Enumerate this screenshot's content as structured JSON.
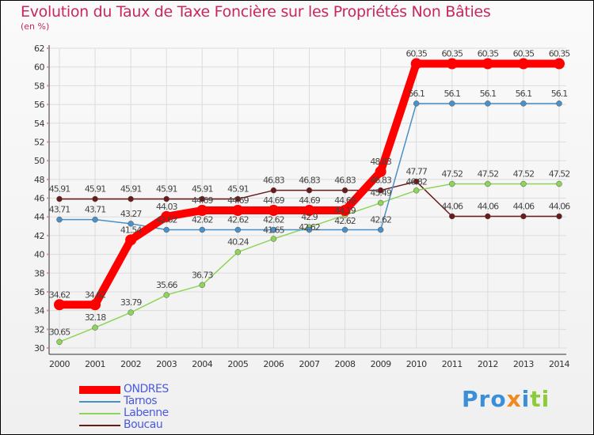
{
  "chart_data": {
    "type": "line",
    "title": "Evolution du Taux de Taxe Foncière sur les Propriétés Non Bâties",
    "subtitle": "(en %)",
    "xlabel": "",
    "ylabel": "",
    "x": [
      "2000",
      "2001",
      "2002",
      "2003",
      "2004",
      "2005",
      "2006",
      "2007",
      "2008",
      "2009",
      "2010",
      "2011",
      "2012",
      "2013",
      "2014"
    ],
    "ylim": [
      30,
      62
    ],
    "yticks": [
      30,
      32,
      34,
      36,
      38,
      40,
      42,
      44,
      46,
      48,
      50,
      52,
      54,
      56,
      58,
      60,
      62
    ],
    "grid": true,
    "legend": "bottom-left",
    "series": [
      {
        "name": "ONDRES",
        "color": "#ff0000",
        "values": [
          34.62,
          34.62,
          41.54,
          44.03,
          44.69,
          44.69,
          44.69,
          44.69,
          44.69,
          48.83,
          60.35,
          60.35,
          60.35,
          60.35,
          60.35
        ]
      },
      {
        "name": "Tarnos",
        "color": "#4a90c8",
        "values": [
          43.71,
          43.71,
          43.27,
          42.62,
          42.62,
          42.62,
          42.62,
          42.62,
          42.62,
          42.62,
          56.1,
          56.1,
          56.1,
          56.1,
          56.1
        ]
      },
      {
        "name": "Labenne",
        "color": "#8fd45a",
        "values": [
          30.65,
          32.18,
          33.79,
          35.66,
          36.73,
          40.24,
          41.65,
          42.9,
          44.19,
          45.49,
          46.82,
          47.52,
          47.52,
          47.52,
          47.52
        ]
      },
      {
        "name": "Boucau",
        "color": "#6b1a1a",
        "values": [
          45.91,
          45.91,
          45.91,
          45.91,
          45.91,
          45.91,
          46.83,
          46.83,
          46.83,
          46.83,
          47.77,
          44.06,
          44.06,
          44.06,
          44.06
        ]
      }
    ]
  },
  "logo": {
    "text": "Proxiti"
  }
}
